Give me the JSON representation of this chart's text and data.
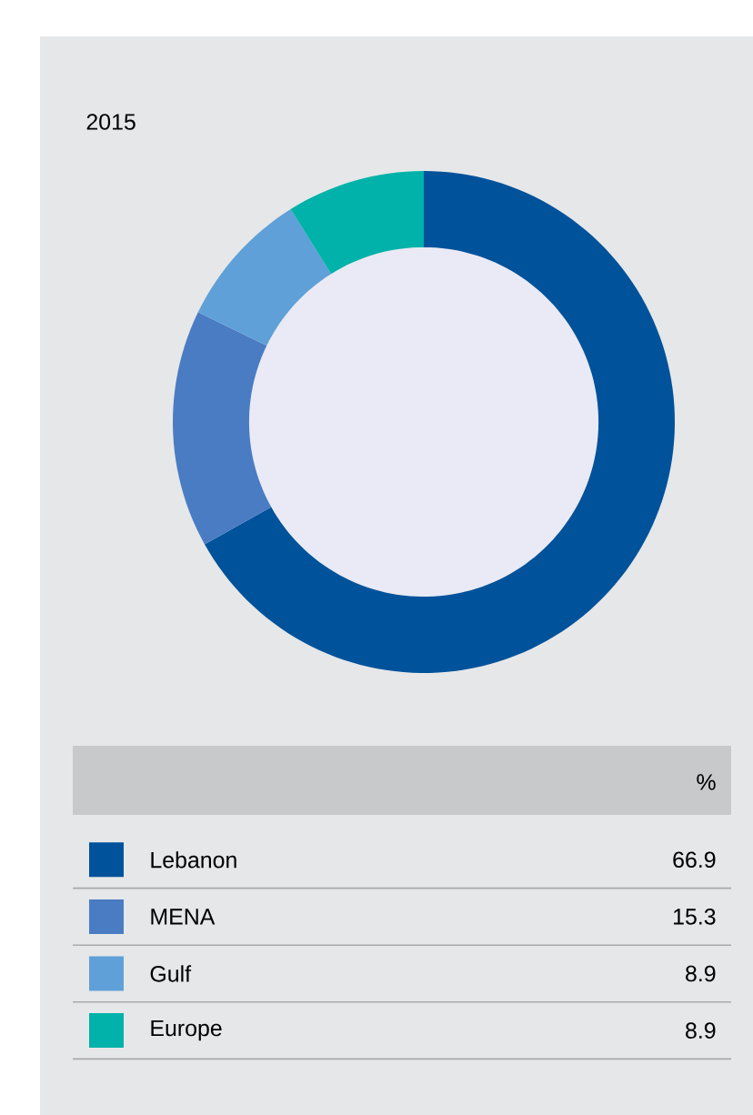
{
  "chart_data": {
    "type": "donut",
    "title": "2015",
    "categories": [
      "Lebanon",
      "MENA",
      "Gulf",
      "Europe"
    ],
    "values": [
      66.9,
      15.3,
      8.9,
      8.9
    ],
    "colors": [
      "#00529b",
      "#4a7cc4",
      "#5fa0d8",
      "#00b2a9"
    ],
    "legend_title": "%",
    "legend": "bottom",
    "data_labels": true
  }
}
